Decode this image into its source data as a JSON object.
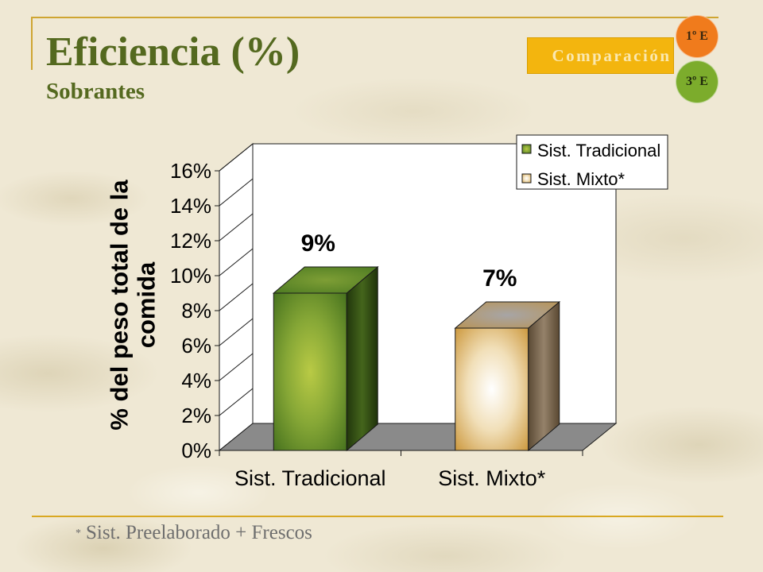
{
  "slide": {
    "title": "Eficiencia (%)",
    "subtitle": "Sobrantes",
    "footnote_marker": "*",
    "footnote": "Sist. Preelaborado + Frescos",
    "colors": {
      "title": "#54691f",
      "rule": "#cfa532",
      "background": "#efe8d4"
    }
  },
  "nav": {
    "comparison": "Comparación",
    "circle_top": "1º E",
    "circle_bottom": "3º E",
    "colors": {
      "comparison": "#f3b50e",
      "circle_top": "#f07b1c",
      "circle_bottom": "#7cac2c"
    }
  },
  "chart_data": {
    "type": "bar",
    "three_d": true,
    "categories": [
      "Sist. Tradicional",
      "Sist. Mixto*"
    ],
    "values": [
      9,
      7
    ],
    "unit": "%",
    "data_labels": [
      "9%",
      "7%"
    ],
    "legend": [
      "Sist. Tradicional",
      "Sist. Mixto*"
    ],
    "legend_position": "top-right",
    "xlabel": "",
    "ylabel": "% del peso total de la comida",
    "ylim": [
      0,
      16
    ],
    "ytick_step": 2,
    "y_tick_labels": [
      "0%",
      "2%",
      "4%",
      "6%",
      "8%",
      "10%",
      "12%",
      "14%",
      "16%"
    ],
    "grid": false,
    "colors": [
      "#3f6c1b",
      "#c8902f"
    ]
  }
}
